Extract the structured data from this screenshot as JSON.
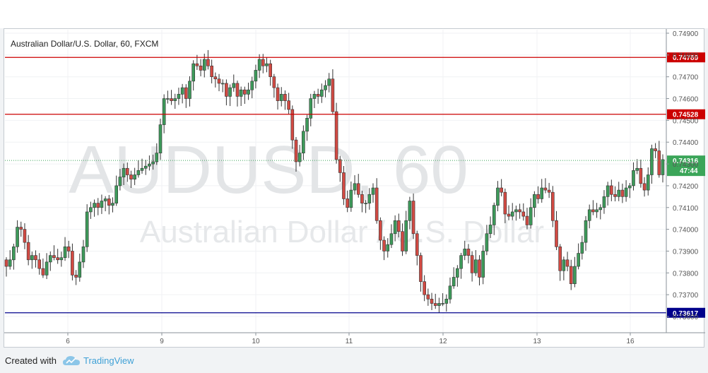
{
  "chart_data": {
    "type": "candlestick",
    "title": "Australian Dollar/U.S. Dollar, 60, FXCM",
    "watermark_symbol": "AUDUSD, 60",
    "watermark_name": "Australian Dollar / U.S. Dollar",
    "x_ticks": [
      "6",
      "9",
      "10",
      "11",
      "12",
      "13",
      "16"
    ],
    "y_ticks": [
      "0.74900",
      "0.74800",
      "0.74700",
      "0.74600",
      "0.74500",
      "0.74400",
      "0.74300",
      "0.74200",
      "0.74100",
      "0.74000",
      "0.73900",
      "0.73800",
      "0.73700",
      "0.73600"
    ],
    "ylim": [
      0.7358,
      0.7491
    ],
    "horizontal_lines": [
      {
        "value": 0.74789,
        "label": "0.74789",
        "color": "#cc0000"
      },
      {
        "value": 0.74528,
        "label": "0.74528",
        "color": "#cc0000"
      },
      {
        "value": 0.73617,
        "label": "0.73617",
        "color": "#00008b"
      }
    ],
    "last_price": {
      "value": 0.74316,
      "label": "0.74316",
      "countdown": "47:44",
      "color": "#3ba559"
    },
    "up_color": "#3d9a5a",
    "down_color": "#d24a43",
    "approx_close_path": [
      0.7383,
      0.7386,
      0.7392,
      0.7401,
      0.74,
      0.7394,
      0.7386,
      0.7388,
      0.7386,
      0.7382,
      0.7379,
      0.7385,
      0.7388,
      0.7387,
      0.7386,
      0.7387,
      0.7392,
      0.739,
      0.7379,
      0.7378,
      0.7385,
      0.7392,
      0.7408,
      0.741,
      0.7412,
      0.741,
      0.7413,
      0.7414,
      0.7411,
      0.7412,
      0.742,
      0.7424,
      0.7428,
      0.7425,
      0.7423,
      0.7425,
      0.7427,
      0.7428,
      0.7429,
      0.743,
      0.7431,
      0.7435,
      0.7448,
      0.746,
      0.746,
      0.7459,
      0.746,
      0.7462,
      0.7465,
      0.746,
      0.7468,
      0.7476,
      0.7475,
      0.7473,
      0.7478,
      0.7475,
      0.747,
      0.7469,
      0.7467,
      0.7467,
      0.7461,
      0.7465,
      0.7467,
      0.7461,
      0.7464,
      0.7462,
      0.7464,
      0.7468,
      0.7473,
      0.7478,
      0.7475,
      0.7476,
      0.747,
      0.7465,
      0.7459,
      0.7462,
      0.7459,
      0.7455,
      0.7441,
      0.7431,
      0.7435,
      0.7445,
      0.7451,
      0.746,
      0.7462,
      0.7461,
      0.7464,
      0.7466,
      0.7469,
      0.7454,
      0.7432,
      0.7426,
      0.7414,
      0.741,
      0.7418,
      0.7421,
      0.7416,
      0.7412,
      0.7412,
      0.7416,
      0.7419,
      0.7404,
      0.7395,
      0.739,
      0.7393,
      0.7398,
      0.7404,
      0.7399,
      0.739,
      0.7404,
      0.7413,
      0.7398,
      0.7388,
      0.7376,
      0.737,
      0.7368,
      0.7366,
      0.7365,
      0.7366,
      0.7366,
      0.7368,
      0.7374,
      0.7378,
      0.7382,
      0.7388,
      0.7391,
      0.7388,
      0.738,
      0.7386,
      0.7378,
      0.739,
      0.7398,
      0.7402,
      0.7411,
      0.7419,
      0.7417,
      0.7407,
      0.7406,
      0.7408,
      0.7409,
      0.7408,
      0.7406,
      0.7402,
      0.741,
      0.7416,
      0.7414,
      0.7419,
      0.7418,
      0.7417,
      0.7404,
      0.7392,
      0.7381,
      0.7386,
      0.7383,
      0.7375,
      0.7383,
      0.7389,
      0.7394,
      0.7404,
      0.7409,
      0.7408,
      0.7409,
      0.741,
      0.7415,
      0.742,
      0.7416,
      0.7415,
      0.7418,
      0.7415,
      0.7419,
      0.742,
      0.7427,
      0.7428,
      0.7421,
      0.7418,
      0.7425,
      0.7437,
      0.7436,
      0.7425,
      0.7432
    ]
  },
  "footer": {
    "created_label": "Created with",
    "brand_name": "TradingView"
  }
}
